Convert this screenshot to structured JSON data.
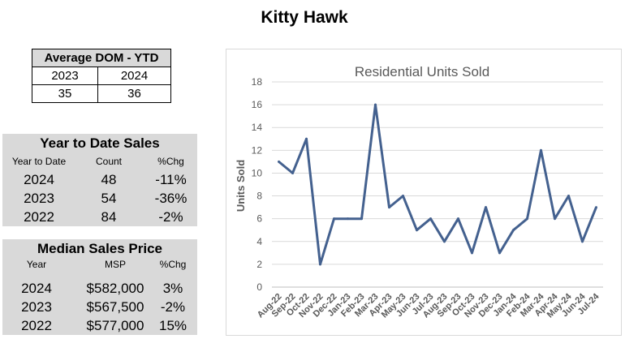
{
  "page_title": "Kitty Hawk",
  "dom": {
    "title": "Average DOM - YTD",
    "years": [
      "2023",
      "2024"
    ],
    "values": [
      "35",
      "36"
    ]
  },
  "ytd": {
    "title": "Year to Date Sales",
    "headers": [
      "Year to Date",
      "Count",
      "%Chg"
    ],
    "rows": [
      {
        "year": "2024",
        "count": "48",
        "chg": "-11%"
      },
      {
        "year": "2023",
        "count": "54",
        "chg": "-36%"
      },
      {
        "year": "2022",
        "count": "84",
        "chg": "-2%"
      }
    ]
  },
  "msp": {
    "title": "Median Sales Price",
    "headers": [
      "Year",
      "MSP",
      "%Chg"
    ],
    "rows": [
      {
        "year": "2024",
        "msp": "$582,000",
        "chg": "3%"
      },
      {
        "year": "2023",
        "msp": "$567,500",
        "chg": "-2%"
      },
      {
        "year": "2022",
        "msp": "$577,000",
        "chg": "15%"
      }
    ]
  },
  "chart_data": {
    "type": "line",
    "title": "Residential Units Sold",
    "ylabel": "Units Sold",
    "xlabel": "",
    "ylim": [
      0,
      18
    ],
    "yticks": [
      0,
      2,
      4,
      6,
      8,
      10,
      12,
      14,
      16,
      18
    ],
    "categories": [
      "Aug-22",
      "Sep-22",
      "Oct-22",
      "Nov-22",
      "Dec-22",
      "Jan-23",
      "Feb-23",
      "Mar-23",
      "Apr-23",
      "May-23",
      "Jun-23",
      "Jul-23",
      "Aug-23",
      "Sep-23",
      "Oct-23",
      "Nov-23",
      "Dec-23",
      "Jan-24",
      "Feb-24",
      "Mar-24",
      "Apr-24",
      "May-24",
      "Jun-24",
      "Jul-24"
    ],
    "series": [
      {
        "values": [
          11,
          10,
          13,
          2,
          6,
          6,
          6,
          16,
          7,
          8,
          5,
          6,
          4,
          6,
          3,
          7,
          3,
          5,
          6,
          12,
          6,
          8,
          4,
          7
        ]
      }
    ],
    "grid": true,
    "line_color": "#44618f"
  }
}
